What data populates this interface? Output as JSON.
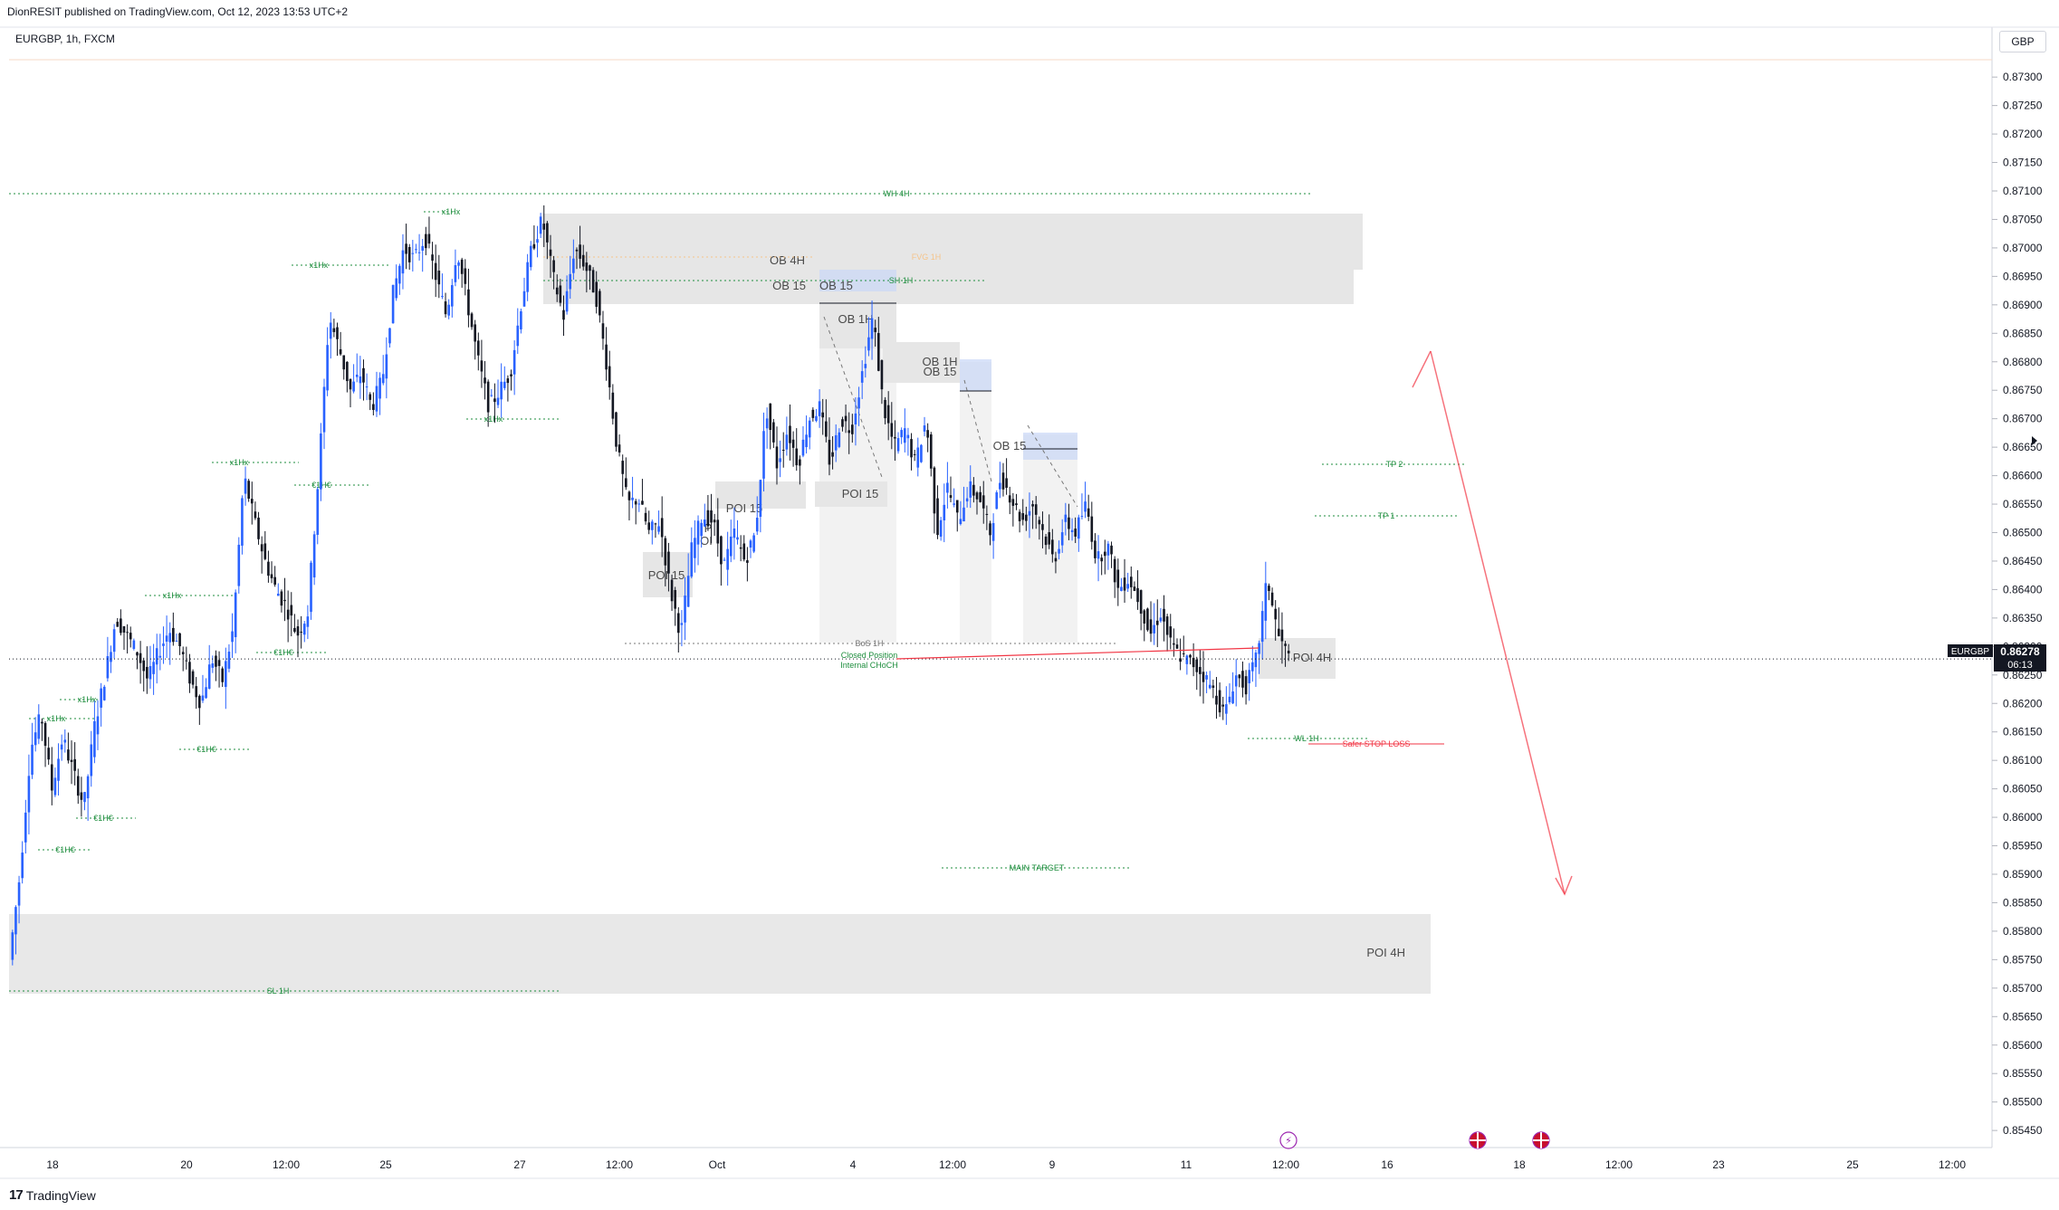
{
  "header": {
    "published": "DionRESIT published on TradingView.com, Oct 12, 2023 13:53 UTC+2",
    "symbol": "EURGBP, 1h, FXCM",
    "currency": "GBP"
  },
  "footer": {
    "brand": "TradingView",
    "logo": "17"
  },
  "price_badge": {
    "symbol": "EURGBP",
    "price": "0.86278",
    "countdown": "06:13"
  },
  "colors": {
    "bull": "#2962ff",
    "bear": "#131722",
    "green_label": "#1e8e3e",
    "red": "#f23645",
    "fvg": "#f5c48a",
    "zone_gray": "#e6e6e6",
    "zone_blue": "#c9d7f7"
  },
  "icons": [
    "lightning-icon",
    "uk-flag-icon",
    "uk-flag-icon"
  ],
  "chart_data": {
    "type": "candlestick",
    "symbol": "EURGBP",
    "timeframe": "1h",
    "ylim": [
      0.8542,
      0.8734
    ],
    "y_ticks": [
      "0.87300",
      "0.87250",
      "0.87200",
      "0.87150",
      "0.87100",
      "0.87050",
      "0.87000",
      "0.86950",
      "0.86900",
      "0.86850",
      "0.86800",
      "0.86750",
      "0.86700",
      "0.86650",
      "0.86600",
      "0.86550",
      "0.86500",
      "0.86450",
      "0.86400",
      "0.86350",
      "0.86300",
      "0.86250",
      "0.86200",
      "0.86150",
      "0.86100",
      "0.86050",
      "0.86000",
      "0.85950",
      "0.85900",
      "0.85850",
      "0.85800",
      "0.85750",
      "0.85700",
      "0.85650",
      "0.85600",
      "0.85550",
      "0.85500",
      "0.85450"
    ],
    "x_ticks": [
      "18",
      "20",
      "12:00",
      "25",
      "27",
      "12:00",
      "Oct",
      "4",
      "12:00",
      "9",
      "11",
      "12:00",
      "16",
      "18",
      "12:00",
      "23",
      "25",
      "12:00"
    ],
    "last_price": 0.86278,
    "path": [
      [
        0.0,
        0.8575
      ],
      [
        0.0054,
        0.859
      ],
      [
        0.0108,
        0.8612
      ],
      [
        0.0162,
        0.8618
      ],
      [
        0.0216,
        0.8605
      ],
      [
        0.027,
        0.8614
      ],
      [
        0.0324,
        0.8608
      ],
      [
        0.0378,
        0.8602
      ],
      [
        0.0432,
        0.8616
      ],
      [
        0.0486,
        0.8625
      ],
      [
        0.054,
        0.8635
      ],
      [
        0.0594,
        0.8632
      ],
      [
        0.0648,
        0.8629
      ],
      [
        0.0702,
        0.8624
      ],
      [
        0.0756,
        0.8629
      ],
      [
        0.081,
        0.8633
      ],
      [
        0.0864,
        0.863
      ],
      [
        0.0918,
        0.8624
      ],
      [
        0.0972,
        0.862
      ],
      [
        0.1026,
        0.8628
      ],
      [
        0.108,
        0.8624
      ],
      [
        0.1134,
        0.8633
      ],
      [
        0.1188,
        0.866
      ],
      [
        0.1242,
        0.8652
      ],
      [
        0.1296,
        0.8645
      ],
      [
        0.135,
        0.864
      ],
      [
        0.1404,
        0.8637
      ],
      [
        0.1458,
        0.8632
      ],
      [
        0.1512,
        0.8636
      ],
      [
        0.1566,
        0.866
      ],
      [
        0.162,
        0.8688
      ],
      [
        0.1674,
        0.8682
      ],
      [
        0.1728,
        0.8675
      ],
      [
        0.1782,
        0.8678
      ],
      [
        0.1836,
        0.8672
      ],
      [
        0.189,
        0.8677
      ],
      [
        0.1944,
        0.8692
      ],
      [
        0.1998,
        0.87
      ],
      [
        0.2052,
        0.8698
      ],
      [
        0.2106,
        0.8702
      ],
      [
        0.216,
        0.8695
      ],
      [
        0.2214,
        0.8688
      ],
      [
        0.2268,
        0.87
      ],
      [
        0.2322,
        0.869
      ],
      [
        0.2376,
        0.868
      ],
      [
        0.243,
        0.8672
      ],
      [
        0.2484,
        0.8675
      ],
      [
        0.2538,
        0.8678
      ],
      [
        0.2592,
        0.869
      ],
      [
        0.2646,
        0.87
      ],
      [
        0.27,
        0.8705
      ],
      [
        0.2754,
        0.8695
      ],
      [
        0.2808,
        0.8688
      ],
      [
        0.2862,
        0.87
      ],
      [
        0.2916,
        0.8697
      ],
      [
        0.297,
        0.8692
      ],
      [
        0.3024,
        0.868
      ],
      [
        0.3078,
        0.8665
      ],
      [
        0.3132,
        0.8655
      ],
      [
        0.3186,
        0.8656
      ],
      [
        0.324,
        0.865
      ],
      [
        0.3294,
        0.8652
      ],
      [
        0.3348,
        0.864
      ],
      [
        0.3402,
        0.8632
      ],
      [
        0.3456,
        0.8647
      ],
      [
        0.351,
        0.8653
      ],
      [
        0.3564,
        0.8652
      ],
      [
        0.3618,
        0.8644
      ],
      [
        0.3672,
        0.865
      ],
      [
        0.3726,
        0.8645
      ],
      [
        0.378,
        0.865
      ],
      [
        0.3834,
        0.8672
      ],
      [
        0.3888,
        0.8662
      ],
      [
        0.3942,
        0.8668
      ],
      [
        0.3996,
        0.8662
      ],
      [
        0.405,
        0.867
      ],
      [
        0.4104,
        0.8672
      ],
      [
        0.4158,
        0.8662
      ],
      [
        0.4212,
        0.867
      ],
      [
        0.4266,
        0.8668
      ],
      [
        0.432,
        0.8678
      ],
      [
        0.4374,
        0.8688
      ],
      [
        0.4428,
        0.8672
      ],
      [
        0.4482,
        0.8665
      ],
      [
        0.4536,
        0.8668
      ],
      [
        0.459,
        0.8662
      ],
      [
        0.4644,
        0.867
      ],
      [
        0.4698,
        0.865
      ],
      [
        0.4752,
        0.8658
      ],
      [
        0.4806,
        0.8652
      ],
      [
        0.486,
        0.8658
      ],
      [
        0.4914,
        0.8656
      ],
      [
        0.4968,
        0.865
      ],
      [
        0.5022,
        0.866
      ],
      [
        0.5076,
        0.8656
      ],
      [
        0.513,
        0.8652
      ],
      [
        0.5184,
        0.8655
      ],
      [
        0.5238,
        0.865
      ],
      [
        0.5292,
        0.8645
      ],
      [
        0.5346,
        0.8652
      ],
      [
        0.54,
        0.865
      ],
      [
        0.5454,
        0.8655
      ],
      [
        0.5508,
        0.8645
      ],
      [
        0.5562,
        0.8648
      ],
      [
        0.5616,
        0.864
      ],
      [
        0.567,
        0.8642
      ],
      [
        0.5724,
        0.8638
      ],
      [
        0.5778,
        0.8632
      ],
      [
        0.5832,
        0.8636
      ],
      [
        0.5886,
        0.863
      ],
      [
        0.594,
        0.8628
      ],
      [
        0.5994,
        0.8627
      ],
      [
        0.6048,
        0.8625
      ],
      [
        0.6102,
        0.8622
      ],
      [
        0.6156,
        0.8618
      ],
      [
        0.621,
        0.8625
      ],
      [
        0.6264,
        0.8623
      ],
      [
        0.6318,
        0.8628
      ],
      [
        0.6372,
        0.8642
      ],
      [
        0.6426,
        0.8632
      ],
      [
        0.648,
        0.8628
      ]
    ]
  },
  "zones": [
    {
      "label": "OB 4H"
    },
    {
      "label": "OB 15"
    },
    {
      "label": "OB 1H"
    },
    {
      "label": "OB 1H"
    },
    {
      "label": "OB 15"
    },
    {
      "label": "OB 15"
    },
    {
      "label": "POI 15"
    },
    {
      "label": "POI 15"
    },
    {
      "label": "POI 15"
    },
    {
      "label": "OB 15"
    },
    {
      "label": "POI 4H"
    },
    {
      "label": "POI 4H"
    }
  ],
  "small_labels": [
    "P",
    "OI"
  ],
  "levels": [
    {
      "label": "WH 4H"
    },
    {
      "label": "FVG 1H"
    },
    {
      "label": "SH 1H"
    },
    {
      "label": "TP 2"
    },
    {
      "label": "TP 1"
    },
    {
      "label": "BoS 1H"
    },
    {
      "label": "Closed Position"
    },
    {
      "label": "Internal CHoCH"
    },
    {
      "label": "WL 1H"
    },
    {
      "label": "Safer STOP LOSS"
    },
    {
      "label": "MAIN TARGET"
    },
    {
      "label": "SL 1H"
    }
  ],
  "swing_labels": [
    "x1Hx",
    "x1Hx",
    "x1Hx",
    "x1Hx",
    "x1Hx",
    "x1Hx",
    "x1Hx",
    "€1H€",
    "€1H€",
    "€1H€",
    "€1H€",
    "€1H€"
  ]
}
